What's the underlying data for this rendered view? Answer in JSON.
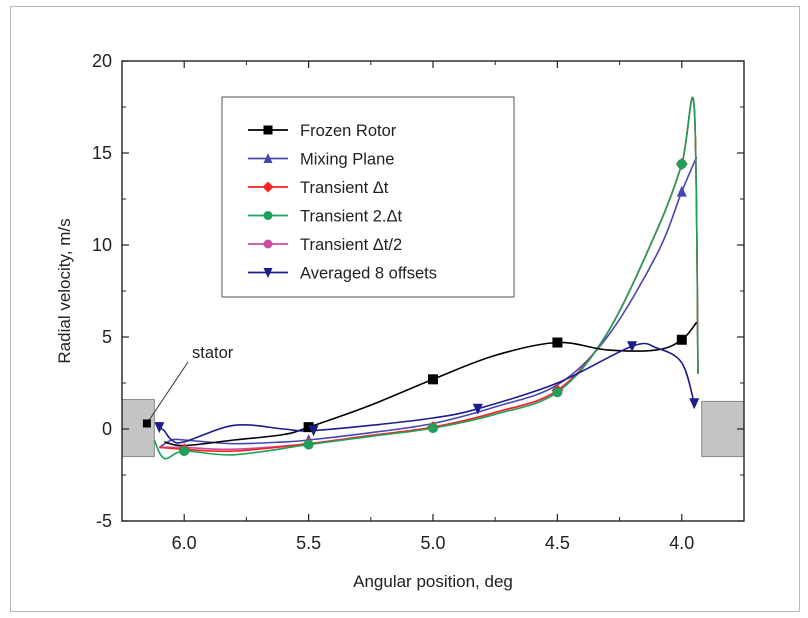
{
  "chart_data": {
    "type": "line",
    "title": "",
    "xlabel": "Angular position, deg",
    "ylabel": "Radial velocity, m/s",
    "xlim": [
      6.25,
      3.75
    ],
    "ylim": [
      -5,
      20
    ],
    "x_reversed": true,
    "xticks": [
      "6.0",
      "5.5",
      "5.0",
      "4.5",
      "4.0"
    ],
    "xtick_values": [
      6.0,
      5.5,
      5.0,
      4.5,
      4.0
    ],
    "yticks": [
      "-5",
      "0",
      "5",
      "10",
      "15",
      "20"
    ],
    "ytick_values": [
      -5,
      0,
      5,
      10,
      15,
      20
    ],
    "grid": false,
    "legend_position": "top-center",
    "annotation": {
      "text": "stator",
      "x": 6.15,
      "y": 0.3
    },
    "stator_regions": [
      {
        "x": [
          6.25,
          6.12
        ],
        "y": [
          -1.5,
          1.6
        ]
      },
      {
        "x": [
          3.92,
          3.75
        ],
        "y": [
          -1.5,
          1.5
        ]
      }
    ],
    "series": [
      {
        "name": "Frozen Rotor",
        "color": "#000000",
        "marker": "square",
        "x": [
          6.08,
          6.0,
          5.8,
          5.6,
          5.5,
          5.25,
          5.0,
          4.75,
          4.5,
          4.3,
          4.1,
          4.0,
          3.94
        ],
        "y": [
          -0.7,
          -0.9,
          -0.6,
          -0.3,
          0.1,
          1.3,
          2.7,
          4.0,
          4.7,
          4.3,
          4.3,
          4.85,
          5.8
        ],
        "markers_at": [
          5.5,
          5.0,
          4.5,
          4.0
        ]
      },
      {
        "name": "Mixing Plane",
        "color": "#4646b4",
        "marker": "triangle-up",
        "x": [
          6.1,
          6.05,
          6.0,
          5.8,
          5.6,
          5.5,
          5.25,
          5.0,
          4.75,
          4.5,
          4.3,
          4.1,
          4.0,
          3.94
        ],
        "y": [
          -1.0,
          -0.6,
          -0.6,
          -0.8,
          -0.7,
          -0.6,
          -0.2,
          0.3,
          1.2,
          2.4,
          5.0,
          9.5,
          12.9,
          14.8
        ],
        "markers_at": [
          5.5,
          4.0
        ]
      },
      {
        "name": "Transient Δt",
        "color": "#ff2020",
        "marker": "diamond",
        "x": [
          6.1,
          6.0,
          5.8,
          5.5,
          5.25,
          5.0,
          4.75,
          4.5,
          4.3,
          4.1,
          4.0,
          3.95,
          3.935
        ],
        "y": [
          -1.0,
          -1.1,
          -1.2,
          -0.8,
          -0.35,
          0.1,
          0.9,
          2.1,
          5.2,
          10.8,
          14.4,
          17.5,
          3.0
        ],
        "markers_at": [
          6.0,
          5.5,
          5.0,
          4.5,
          4.0
        ]
      },
      {
        "name": "Transient 2.Δt",
        "color": "#1ea05a",
        "marker": "circle",
        "x": [
          6.12,
          6.08,
          6.0,
          5.8,
          5.5,
          5.25,
          5.0,
          4.75,
          4.5,
          4.3,
          4.1,
          4.0,
          3.95,
          3.935
        ],
        "y": [
          -0.6,
          -1.6,
          -1.2,
          -1.4,
          -0.85,
          -0.4,
          0.05,
          0.8,
          2.0,
          5.2,
          10.8,
          14.4,
          17.5,
          3.0
        ],
        "markers_at": [
          6.0,
          5.5,
          5.0,
          4.5,
          4.0
        ]
      },
      {
        "name": "Transient Δt/2",
        "color": "#c84ea0",
        "marker": "circle",
        "x": [
          6.1,
          6.0,
          5.8,
          5.5,
          5.25,
          5.0,
          4.75,
          4.5,
          4.3,
          4.1,
          4.0,
          3.95,
          3.935
        ],
        "y": [
          -1.0,
          -1.0,
          -1.1,
          -0.8,
          -0.35,
          0.1,
          0.9,
          2.1,
          5.2,
          10.8,
          14.4,
          17.5,
          3.0
        ],
        "markers_at": []
      },
      {
        "name": "Averaged 8 offsets",
        "color": "#1c1c8c",
        "marker": "triangle-down",
        "x": [
          6.1,
          6.08,
          6.05,
          6.0,
          5.8,
          5.6,
          5.5,
          5.25,
          5.0,
          4.82,
          4.5,
          4.2,
          4.1,
          4.0,
          3.95
        ],
        "y": [
          0.1,
          -0.1,
          -0.6,
          -0.7,
          0.2,
          0.0,
          -0.1,
          0.2,
          0.6,
          1.1,
          2.5,
          4.5,
          4.4,
          3.6,
          1.4
        ],
        "markers_at": [
          6.1,
          5.48,
          4.82,
          4.2,
          3.95
        ]
      }
    ]
  }
}
